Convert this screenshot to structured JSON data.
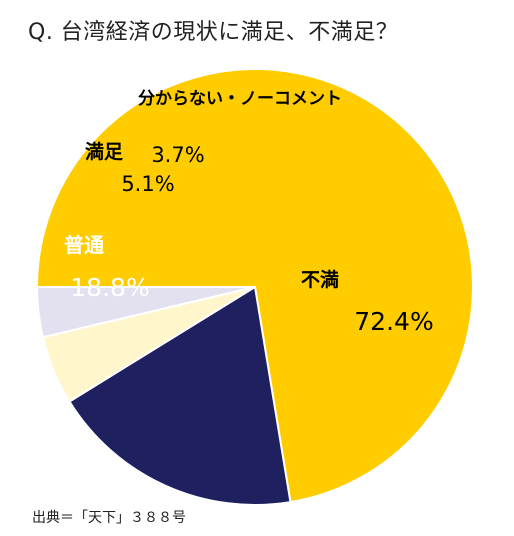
{
  "title": "Q. 台湾経済の現状に満足、不満足？",
  "source": "出典＝「天下」３８８号",
  "chart_data": {
    "type": "pie",
    "start": "9:00 clockwise",
    "slices": [
      {
        "name": "不満",
        "value": 72.4,
        "label": "72.4%",
        "color": "#FFCC00",
        "text_color": "#000000"
      },
      {
        "name": "普通",
        "value": 18.8,
        "label": "18.8%",
        "color": "#1E2060",
        "text_color": "#ffffff"
      },
      {
        "name": "満足",
        "value": 5.1,
        "label": "5.1%",
        "color": "#FFF6CC",
        "text_color": "#000000"
      },
      {
        "name": "分からない・ノーコメント",
        "value": 3.7,
        "label": "3.7%",
        "color": "#E3E0F0",
        "text_color": "#000000"
      }
    ]
  }
}
